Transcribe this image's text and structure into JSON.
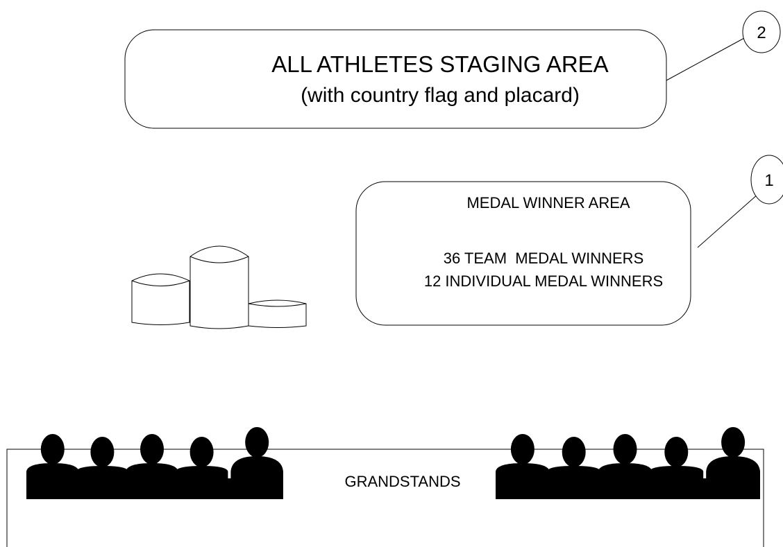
{
  "staging_area": {
    "label": "ALL ATHLETES STAGING AREA",
    "sublabel": "(with country flag and placard)",
    "callout": 2
  },
  "medal_area": {
    "label": "MEDAL WINNER AREA",
    "lines": [
      "36 TEAM  MEDAL WINNERS",
      "12 INDIVIDUAL MEDAL WINNERS"
    ],
    "callout": 1
  },
  "grandstands": {
    "label": "GRANDSTANDS"
  }
}
